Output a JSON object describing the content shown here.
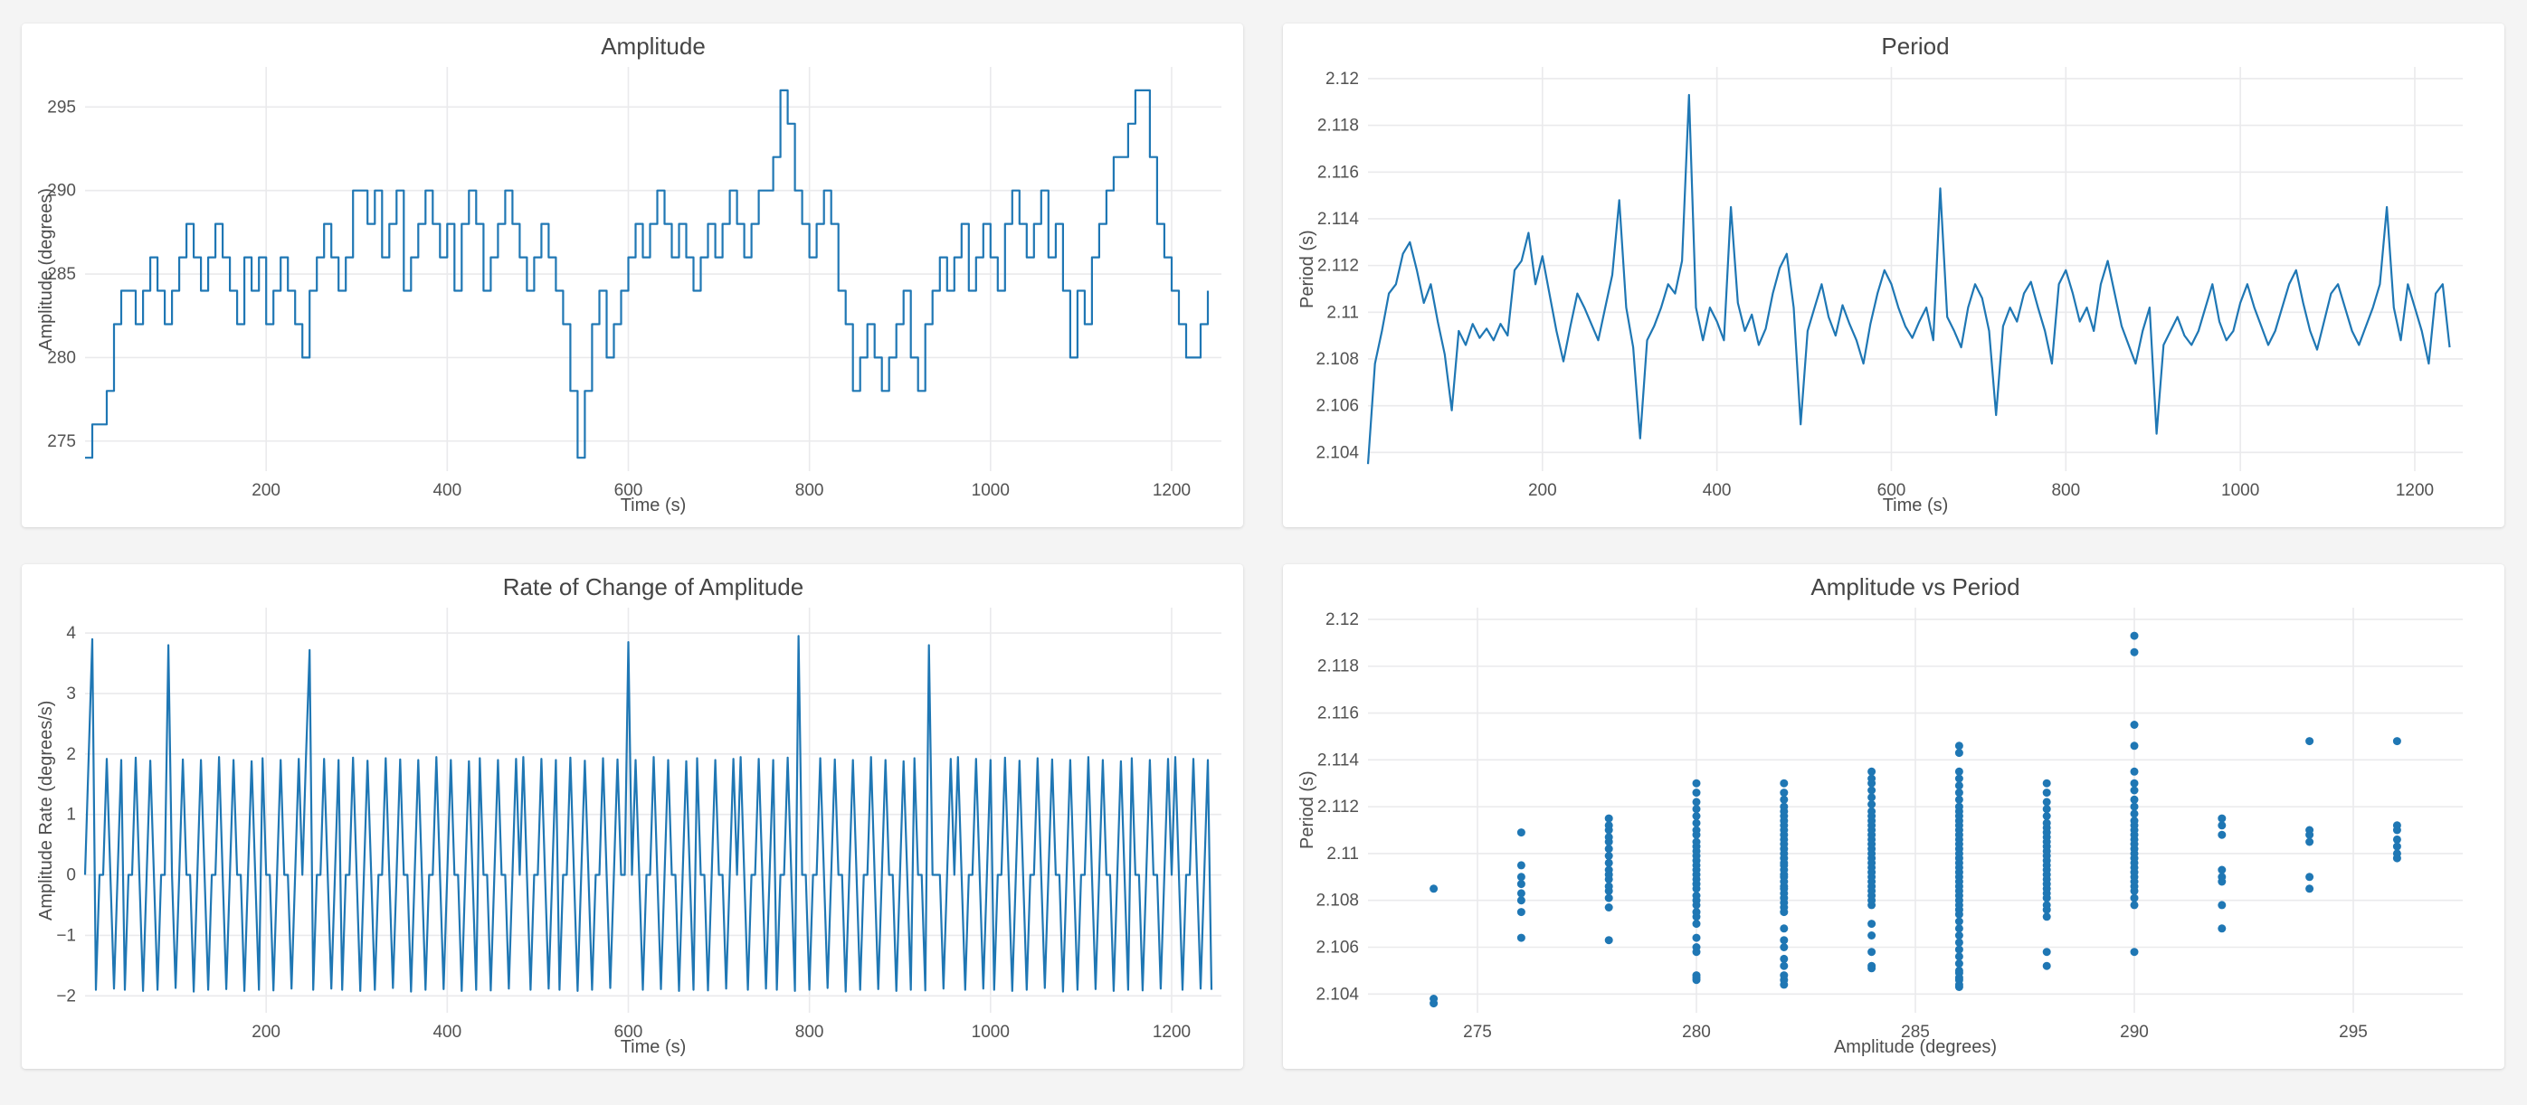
{
  "page": {
    "background": "#f4f4f4"
  },
  "colors": {
    "line": "#1f77b4",
    "grid": "#eaeaec"
  },
  "chart_data": [
    {
      "id": "amplitude",
      "type": "line",
      "line_shape": "step",
      "title": "Amplitude",
      "xlabel": "Time (s)",
      "ylabel": "Amplitude (degrees)",
      "xlim": [
        0,
        1255
      ],
      "ylim": [
        273.2,
        297.4
      ],
      "xticks": [
        200,
        400,
        600,
        800,
        1000,
        1200
      ],
      "xtick_labels": [
        "200",
        "400",
        "600",
        "800",
        "1000",
        "1200"
      ],
      "yticks": [
        275,
        280,
        285,
        290,
        295
      ],
      "ytick_labels": [
        "275",
        "280",
        "285",
        "290",
        "295"
      ],
      "x_start": 0,
      "x_step": 8,
      "values": [
        274,
        276,
        276,
        278,
        282,
        284,
        284,
        282,
        284,
        286,
        284,
        282,
        284,
        286,
        288,
        286,
        284,
        286,
        288,
        286,
        284,
        282,
        286,
        284,
        286,
        282,
        284,
        286,
        284,
        282,
        280,
        284,
        286,
        288,
        286,
        284,
        286,
        290,
        290,
        288,
        290,
        286,
        288,
        290,
        284,
        286,
        288,
        290,
        288,
        286,
        288,
        284,
        288,
        290,
        288,
        284,
        286,
        288,
        290,
        288,
        286,
        284,
        286,
        288,
        286,
        284,
        282,
        278,
        274,
        278,
        282,
        284,
        280,
        282,
        284,
        286,
        288,
        286,
        288,
        290,
        288,
        286,
        288,
        286,
        284,
        286,
        288,
        286,
        288,
        290,
        288,
        286,
        288,
        290,
        290,
        292,
        296,
        294,
        290,
        288,
        286,
        288,
        290,
        288,
        284,
        282,
        278,
        280,
        282,
        280,
        278,
        280,
        282,
        284,
        280,
        278,
        282,
        284,
        286,
        284,
        286,
        288,
        284,
        286,
        288,
        286,
        284,
        288,
        290,
        288,
        286,
        288,
        290,
        286,
        288,
        284,
        280,
        284,
        282,
        286,
        288,
        290,
        292,
        292,
        294,
        296,
        296,
        292,
        288,
        286,
        284,
        282,
        280,
        280,
        282,
        284
      ]
    },
    {
      "id": "period",
      "type": "line",
      "line_shape": "linear",
      "title": "Period",
      "xlabel": "Time (s)",
      "ylabel": "Period (s)",
      "xlim": [
        0,
        1255
      ],
      "ylim": [
        2.1032,
        2.1205
      ],
      "xticks": [
        200,
        400,
        600,
        800,
        1000,
        1200
      ],
      "xtick_labels": [
        "200",
        "400",
        "600",
        "800",
        "1000",
        "1200"
      ],
      "yticks": [
        2.104,
        2.106,
        2.108,
        2.11,
        2.112,
        2.114,
        2.116,
        2.118,
        2.12
      ],
      "ytick_labels": [
        "2.104",
        "2.106",
        "2.108",
        "2.11",
        "2.112",
        "2.114",
        "2.116",
        "2.118",
        "2.12"
      ],
      "x_start": 0,
      "x_step": 8,
      "values": [
        2.1035,
        2.1078,
        2.1092,
        2.1108,
        2.1112,
        2.1125,
        2.113,
        2.1118,
        2.1104,
        2.1112,
        2.1096,
        2.1082,
        2.1058,
        2.1092,
        2.1086,
        2.1095,
        2.1089,
        2.1093,
        2.1088,
        2.1095,
        2.109,
        2.1118,
        2.1122,
        2.1134,
        2.1112,
        2.1124,
        2.1108,
        2.1092,
        2.1079,
        2.1094,
        2.1108,
        2.1102,
        2.1095,
        2.1088,
        2.1102,
        2.1116,
        2.1148,
        2.1102,
        2.1085,
        2.1046,
        2.1088,
        2.1094,
        2.1102,
        2.1112,
        2.1108,
        2.1122,
        2.1193,
        2.1102,
        2.1088,
        2.1102,
        2.1096,
        2.1088,
        2.1145,
        2.1104,
        2.1092,
        2.1099,
        2.1086,
        2.1093,
        2.1108,
        2.1119,
        2.1125,
        2.1102,
        2.1052,
        2.1092,
        2.1102,
        2.1112,
        2.1098,
        2.109,
        2.1103,
        2.1095,
        2.1088,
        2.1078,
        2.1095,
        2.1108,
        2.1118,
        2.1112,
        2.1102,
        2.1094,
        2.1089,
        2.1096,
        2.1102,
        2.1088,
        2.1153,
        2.1098,
        2.1092,
        2.1085,
        2.1102,
        2.1112,
        2.1106,
        2.1092,
        2.1056,
        2.1094,
        2.1102,
        2.1096,
        2.1108,
        2.1113,
        2.1102,
        2.1092,
        2.1078,
        2.1112,
        2.1118,
        2.1108,
        2.1096,
        2.1102,
        2.1092,
        2.1112,
        2.1122,
        2.1108,
        2.1094,
        2.1086,
        2.1078,
        2.1092,
        2.1102,
        2.1048,
        2.1086,
        2.1092,
        2.1098,
        2.109,
        2.1086,
        2.1092,
        2.1102,
        2.1112,
        2.1096,
        2.1088,
        2.1092,
        2.1104,
        2.1112,
        2.1102,
        2.1094,
        2.1086,
        2.1092,
        2.1102,
        2.1112,
        2.1118,
        2.1104,
        2.1092,
        2.1084,
        2.1096,
        2.1108,
        2.1112,
        2.1102,
        2.1092,
        2.1086,
        2.1094,
        2.1102,
        2.1112,
        2.1145,
        2.1102,
        2.1088,
        2.1112,
        2.1102,
        2.1092,
        2.1078,
        2.1108,
        2.1112,
        2.1085
      ]
    },
    {
      "id": "amplitude_rate",
      "type": "line",
      "line_shape": "linear",
      "title": "Rate of Change of Amplitude",
      "xlabel": "Time (s)",
      "ylabel": "Amplitude Rate (degrees/s)",
      "xlim": [
        0,
        1255
      ],
      "ylim": [
        -2.28,
        4.42
      ],
      "xticks": [
        200,
        400,
        600,
        800,
        1000,
        1200
      ],
      "xtick_labels": [
        "200",
        "400",
        "600",
        "800",
        "1000",
        "1200"
      ],
      "yticks": [
        -2,
        -1,
        0,
        1,
        2,
        3,
        4
      ],
      "ytick_labels": [
        "−2",
        "−1",
        "0",
        "1",
        "2",
        "3",
        "4"
      ],
      "x_start": 0,
      "x_step": 4,
      "values": [
        0,
        1.95,
        3.9,
        -1.9,
        0,
        0,
        1.92,
        0,
        -1.88,
        0,
        1.9,
        -1.9,
        0,
        0,
        1.94,
        0,
        -1.92,
        0,
        1.89,
        0,
        -1.9,
        0,
        0,
        3.8,
        0,
        -1.87,
        0,
        1.91,
        0,
        0,
        -1.93,
        0,
        1.9,
        0,
        -1.9,
        0,
        0,
        1.95,
        0,
        -1.89,
        0,
        1.9,
        0,
        0,
        -1.92,
        0,
        1.88,
        0,
        -1.9,
        1.93,
        0,
        0,
        -1.91,
        0,
        1.9,
        0,
        0,
        -1.88,
        0,
        1.92,
        0,
        1.95,
        3.72,
        -1.9,
        0,
        0,
        1.92,
        0,
        -1.88,
        0,
        1.9,
        -1.9,
        0,
        0,
        1.94,
        0,
        -1.92,
        0,
        1.89,
        0,
        -1.9,
        0,
        0,
        1.93,
        0,
        -1.87,
        0,
        1.91,
        0,
        0,
        -1.93,
        0,
        1.9,
        0,
        -1.9,
        0,
        0,
        1.95,
        0,
        -1.89,
        0,
        1.9,
        0,
        0,
        -1.92,
        0,
        1.88,
        0,
        -1.9,
        1.93,
        0,
        0,
        -1.91,
        0,
        1.9,
        0,
        0,
        -1.88,
        0,
        1.92,
        0,
        1.95,
        0,
        -1.9,
        0,
        0,
        1.92,
        0,
        -1.88,
        0,
        1.9,
        -1.9,
        0,
        0,
        1.94,
        0,
        -1.92,
        0,
        1.89,
        0,
        -1.9,
        0,
        0,
        1.93,
        0,
        -1.87,
        0,
        1.91,
        0,
        0,
        3.85,
        0,
        1.9,
        0,
        -1.9,
        0,
        0,
        1.95,
        0,
        -1.89,
        0,
        1.9,
        0,
        0,
        -1.92,
        0,
        1.88,
        0,
        -1.9,
        1.93,
        0,
        0,
        -1.91,
        0,
        1.9,
        0,
        0,
        -1.88,
        0,
        1.92,
        0,
        1.95,
        0,
        -1.9,
        0,
        0,
        1.92,
        0,
        -1.88,
        0,
        1.9,
        -1.9,
        0,
        0,
        1.94,
        0,
        -1.92,
        3.95,
        0,
        0,
        -1.9,
        0,
        0,
        1.93,
        0,
        -1.87,
        0,
        1.91,
        0,
        0,
        -1.93,
        0,
        1.9,
        0,
        -1.9,
        0,
        0,
        1.95,
        0,
        -1.89,
        0,
        1.9,
        0,
        0,
        -1.92,
        0,
        1.88,
        0,
        -1.9,
        1.93,
        0,
        0,
        -1.91,
        3.8,
        0,
        0,
        0,
        -1.88,
        0,
        1.92,
        0,
        1.95,
        0,
        -1.9,
        0,
        0,
        1.92,
        0,
        -1.88,
        0,
        1.9,
        -1.9,
        0,
        0,
        1.94,
        0,
        -1.92,
        0,
        1.89,
        0,
        -1.9,
        0,
        0,
        1.93,
        0,
        -1.87,
        0,
        1.91,
        0,
        0,
        -1.93,
        0,
        1.9,
        0,
        -1.9,
        0,
        0,
        1.95,
        0,
        -1.89,
        0,
        1.9,
        0,
        0,
        -1.92,
        0,
        1.88,
        0,
        -1.9,
        1.93,
        0,
        0,
        -1.91,
        0,
        1.9,
        0,
        0,
        -1.88,
        0,
        1.92,
        0,
        1.95,
        0,
        -1.9,
        0,
        0,
        1.92,
        0,
        -1.88,
        0,
        1.9,
        -1.9
      ]
    },
    {
      "id": "amplitude_vs_period",
      "type": "scatter",
      "title": "Amplitude vs Period",
      "xlabel": "Amplitude (degrees)",
      "ylabel": "Period (s)",
      "xlim": [
        272.5,
        297.5
      ],
      "ylim": [
        2.1032,
        2.1205
      ],
      "xticks": [
        275,
        280,
        285,
        290,
        295
      ],
      "xtick_labels": [
        "275",
        "280",
        "285",
        "290",
        "295"
      ],
      "yticks": [
        2.104,
        2.106,
        2.108,
        2.11,
        2.112,
        2.114,
        2.116,
        2.118,
        2.12
      ],
      "ytick_labels": [
        "2.104",
        "2.106",
        "2.108",
        "2.11",
        "2.112",
        "2.114",
        "2.116",
        "2.118",
        "2.12"
      ],
      "columns": {
        "274": [
          2.1036,
          2.1038,
          2.1085
        ],
        "276": [
          2.1064,
          2.1075,
          2.108,
          2.1083,
          2.1087,
          2.109,
          2.1095,
          2.1109
        ],
        "278": [
          2.1063,
          2.1077,
          2.1081,
          2.1084,
          2.1086,
          2.1089,
          2.1091,
          2.1093,
          2.1096,
          2.1099,
          2.1102,
          2.1105,
          2.1107,
          2.111,
          2.1112,
          2.1115
        ],
        "280": [
          2.1046,
          2.1047,
          2.1048,
          2.1058,
          2.106,
          2.1064,
          2.107,
          2.1073,
          2.1075,
          2.1078,
          2.108,
          2.1082,
          2.1085,
          2.1087,
          2.1089,
          2.1091,
          2.1093,
          2.1095,
          2.1097,
          2.1099,
          2.1101,
          2.1103,
          2.1105,
          2.1108,
          2.111,
          2.1113,
          2.1116,
          2.1119,
          2.1122,
          2.1126,
          2.113
        ],
        "282": [
          2.1044,
          2.1046,
          2.1048,
          2.1052,
          2.1055,
          2.106,
          2.1063,
          2.1068,
          2.1075,
          2.1077,
          2.1079,
          2.1081,
          2.1083,
          2.1085,
          2.1086,
          2.1088,
          2.109,
          2.1091,
          2.1093,
          2.1095,
          2.1096,
          2.1098,
          2.11,
          2.1102,
          2.1104,
          2.1106,
          2.1108,
          2.111,
          2.1112,
          2.1114,
          2.1116,
          2.1118,
          2.112,
          2.1123,
          2.1126,
          2.113
        ],
        "284": [
          2.1051,
          2.1052,
          2.1058,
          2.1065,
          2.107,
          2.1078,
          2.108,
          2.1082,
          2.1084,
          2.1086,
          2.1088,
          2.109,
          2.1092,
          2.1094,
          2.1096,
          2.1098,
          2.11,
          2.1102,
          2.1104,
          2.1106,
          2.1108,
          2.111,
          2.1112,
          2.1114,
          2.1116,
          2.1118,
          2.1121,
          2.1124,
          2.1127,
          2.113,
          2.1132,
          2.1135
        ],
        "286": [
          2.1043,
          2.1044,
          2.1046,
          2.1047,
          2.1049,
          2.105,
          2.1053,
          2.1056,
          2.1059,
          2.1062,
          2.1065,
          2.1068,
          2.1071,
          2.1074,
          2.1076,
          2.1078,
          2.108,
          2.1082,
          2.1084,
          2.1086,
          2.1088,
          2.109,
          2.1092,
          2.1094,
          2.1096,
          2.1098,
          2.11,
          2.1102,
          2.1104,
          2.1106,
          2.1108,
          2.111,
          2.1112,
          2.1114,
          2.1116,
          2.1118,
          2.112,
          2.1123,
          2.1126,
          2.1129,
          2.1132,
          2.1135,
          2.1143,
          2.1146
        ],
        "288": [
          2.1052,
          2.1058,
          2.1073,
          2.1076,
          2.1078,
          2.1081,
          2.1083,
          2.1085,
          2.1087,
          2.1089,
          2.1091,
          2.1093,
          2.1095,
          2.1097,
          2.1099,
          2.1101,
          2.1103,
          2.1105,
          2.1107,
          2.1109,
          2.1111,
          2.1113,
          2.1116,
          2.1119,
          2.1122,
          2.1126,
          2.113
        ],
        "290": [
          2.1058,
          2.1078,
          2.1081,
          2.1084,
          2.1086,
          2.1088,
          2.109,
          2.1092,
          2.1094,
          2.1096,
          2.1098,
          2.11,
          2.1102,
          2.1104,
          2.1106,
          2.1108,
          2.111,
          2.1112,
          2.1114,
          2.1117,
          2.112,
          2.1123,
          2.1127,
          2.113,
          2.1135,
          2.1146,
          2.1155,
          2.1186,
          2.1193
        ],
        "292": [
          2.1068,
          2.1078,
          2.1088,
          2.109,
          2.1093,
          2.1108,
          2.1112,
          2.1115
        ],
        "294": [
          2.1085,
          2.109,
          2.1105,
          2.1108,
          2.111,
          2.1148
        ],
        "296": [
          2.1098,
          2.11,
          2.1103,
          2.1106,
          2.111,
          2.1112,
          2.1148
        ]
      }
    }
  ]
}
